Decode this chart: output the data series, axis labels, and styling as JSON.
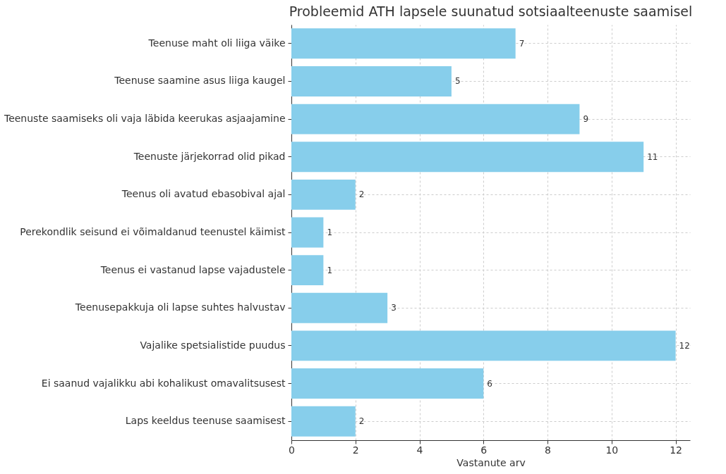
{
  "chart_data": {
    "type": "bar",
    "orientation": "horizontal",
    "title": "Probleemid ATH lapsele suunatud sotsiaalteenuste saamisel",
    "xlabel": "Vastanute arv",
    "categories": [
      "Teenuse maht oli liiga väike",
      "Teenuse saamine asus liiga kaugel",
      "Teenuste saamiseks oli vaja läbida keerukas asjaajamine",
      "Teenuste järjekorrad olid pikad",
      "Teenus oli avatud ebasobival ajal",
      "Perekondlik seisund ei võimaldanud teenustel käimist",
      "Teenus ei vastanud lapse vajadustele",
      "Teenusepakkuja oli lapse suhtes halvustav",
      "Vajalike spetsialistide puudus",
      "Ei saanud vajalikku abi kohalikust omavalitsusest",
      "Laps keeldus teenuse saamisest"
    ],
    "values": [
      7,
      5,
      9,
      11,
      2,
      1,
      1,
      3,
      12,
      6,
      2
    ],
    "color": "#87ceeb",
    "xlim": [
      0,
      12.45
    ],
    "xticks": [
      0,
      2,
      4,
      6,
      8,
      10,
      12
    ],
    "grid": true,
    "data_labels": true
  }
}
